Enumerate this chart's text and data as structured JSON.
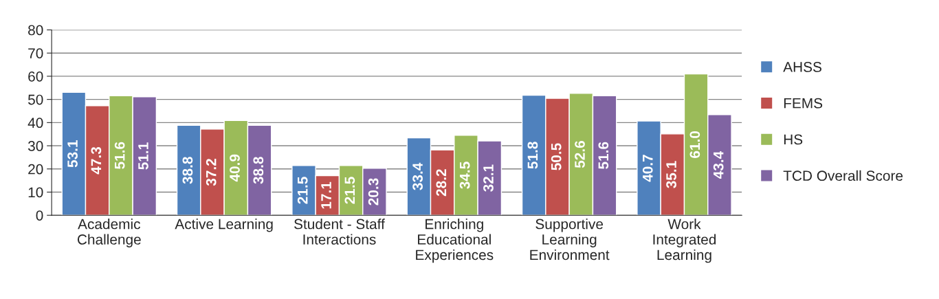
{
  "chart_data": {
    "type": "bar",
    "categories": [
      "Academic\nChallenge",
      "Active Learning",
      "Student - Staff\nInteractions",
      "Enriching\nEducational\nExperiences",
      "Supportive\nLearning\nEnvironment",
      "Work\nIntegrated\nLearning"
    ],
    "series": [
      {
        "name": "AHSS",
        "color": "#4f81bd",
        "values": [
          53.1,
          38.8,
          21.5,
          33.4,
          51.8,
          40.7
        ],
        "value_labels": [
          "53.1",
          "38.8",
          "21.5",
          "33.4",
          "51.8",
          "40.7"
        ]
      },
      {
        "name": "FEMS",
        "color": "#c0504d",
        "values": [
          47.3,
          37.2,
          17.1,
          28.2,
          50.5,
          35.1
        ],
        "value_labels": [
          "47.3",
          "37.2",
          "17.1",
          "28.2",
          "50.5",
          "35.1"
        ]
      },
      {
        "name": "HS",
        "color": "#9bbb59",
        "values": [
          51.6,
          40.9,
          21.5,
          34.5,
          52.6,
          61.0
        ],
        "value_labels": [
          "51.6",
          "40.9",
          "21.5",
          "34.5",
          "52.6",
          "61.0"
        ]
      },
      {
        "name": "TCD Overall Score",
        "color": "#8064a2",
        "values": [
          51.1,
          38.8,
          20.3,
          32.1,
          51.6,
          43.4
        ],
        "value_labels": [
          "51.1",
          "38.8",
          "20.3",
          "32.1",
          "51.6",
          "43.4"
        ]
      }
    ],
    "ylim": [
      0,
      80
    ],
    "yticks": [
      0,
      10,
      20,
      30,
      40,
      50,
      60,
      70,
      80
    ],
    "grid": "y",
    "legend": "right"
  }
}
